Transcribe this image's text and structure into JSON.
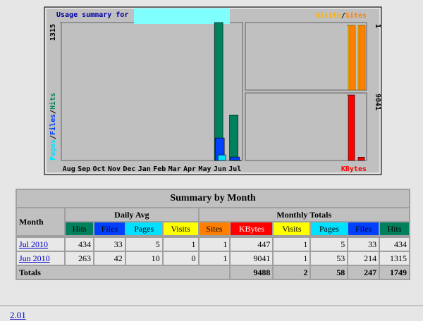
{
  "chart_data": [
    {
      "type": "bar",
      "title": "Usage summary for",
      "categories": [
        "Aug",
        "Sep",
        "Oct",
        "Nov",
        "Dec",
        "Jan",
        "Feb",
        "Mar",
        "Apr",
        "May",
        "Jun",
        "Jul"
      ],
      "ylim": [
        0,
        1315
      ],
      "yticks": [
        1315
      ],
      "series": [
        {
          "name": "Hits",
          "color": "#00805c",
          "values": [
            null,
            null,
            null,
            null,
            null,
            null,
            null,
            null,
            null,
            null,
            1315,
            434
          ]
        },
        {
          "name": "Files",
          "color": "#0040ff",
          "values": [
            null,
            null,
            null,
            null,
            null,
            null,
            null,
            null,
            null,
            null,
            214,
            33
          ]
        },
        {
          "name": "Pages",
          "color": "#00e0ff",
          "values": [
            null,
            null,
            null,
            null,
            null,
            null,
            null,
            null,
            null,
            null,
            53,
            5
          ]
        }
      ]
    },
    {
      "type": "bar",
      "ylim": [
        0,
        1
      ],
      "yticks": [
        1
      ],
      "series": [
        {
          "name": "Visits",
          "color": "#ffb000",
          "values": [
            1,
            1
          ]
        },
        {
          "name": "Sites",
          "color": "#ff8000",
          "values": [
            1,
            1
          ]
        }
      ]
    },
    {
      "type": "bar",
      "ylim": [
        0,
        9041
      ],
      "yticks": [
        9041
      ],
      "series": [
        {
          "name": "KBytes",
          "color": "#ff0000",
          "values": [
            9041,
            447
          ]
        }
      ]
    }
  ],
  "table": {
    "title": "Summary by Month",
    "month_header": "Month",
    "group_headers": [
      "Daily Avg",
      "Monthly Totals"
    ],
    "columns": [
      "Hits",
      "Files",
      "Pages",
      "Visits",
      "Sites",
      "KBytes",
      "Visits",
      "Pages",
      "Files",
      "Hits"
    ],
    "rows": [
      {
        "month": "Jul 2010",
        "values": [
          "434",
          "33",
          "5",
          "1",
          "1",
          "447",
          "1",
          "5",
          "33",
          "434"
        ]
      },
      {
        "month": "Jun 2010",
        "values": [
          "263",
          "42",
          "10",
          "0",
          "1",
          "9041",
          "1",
          "53",
          "214",
          "1315"
        ]
      }
    ],
    "totals": {
      "label": "Totals",
      "values": [
        "9488",
        "2",
        "58",
        "247",
        "1749"
      ]
    }
  },
  "footer": "2.01"
}
